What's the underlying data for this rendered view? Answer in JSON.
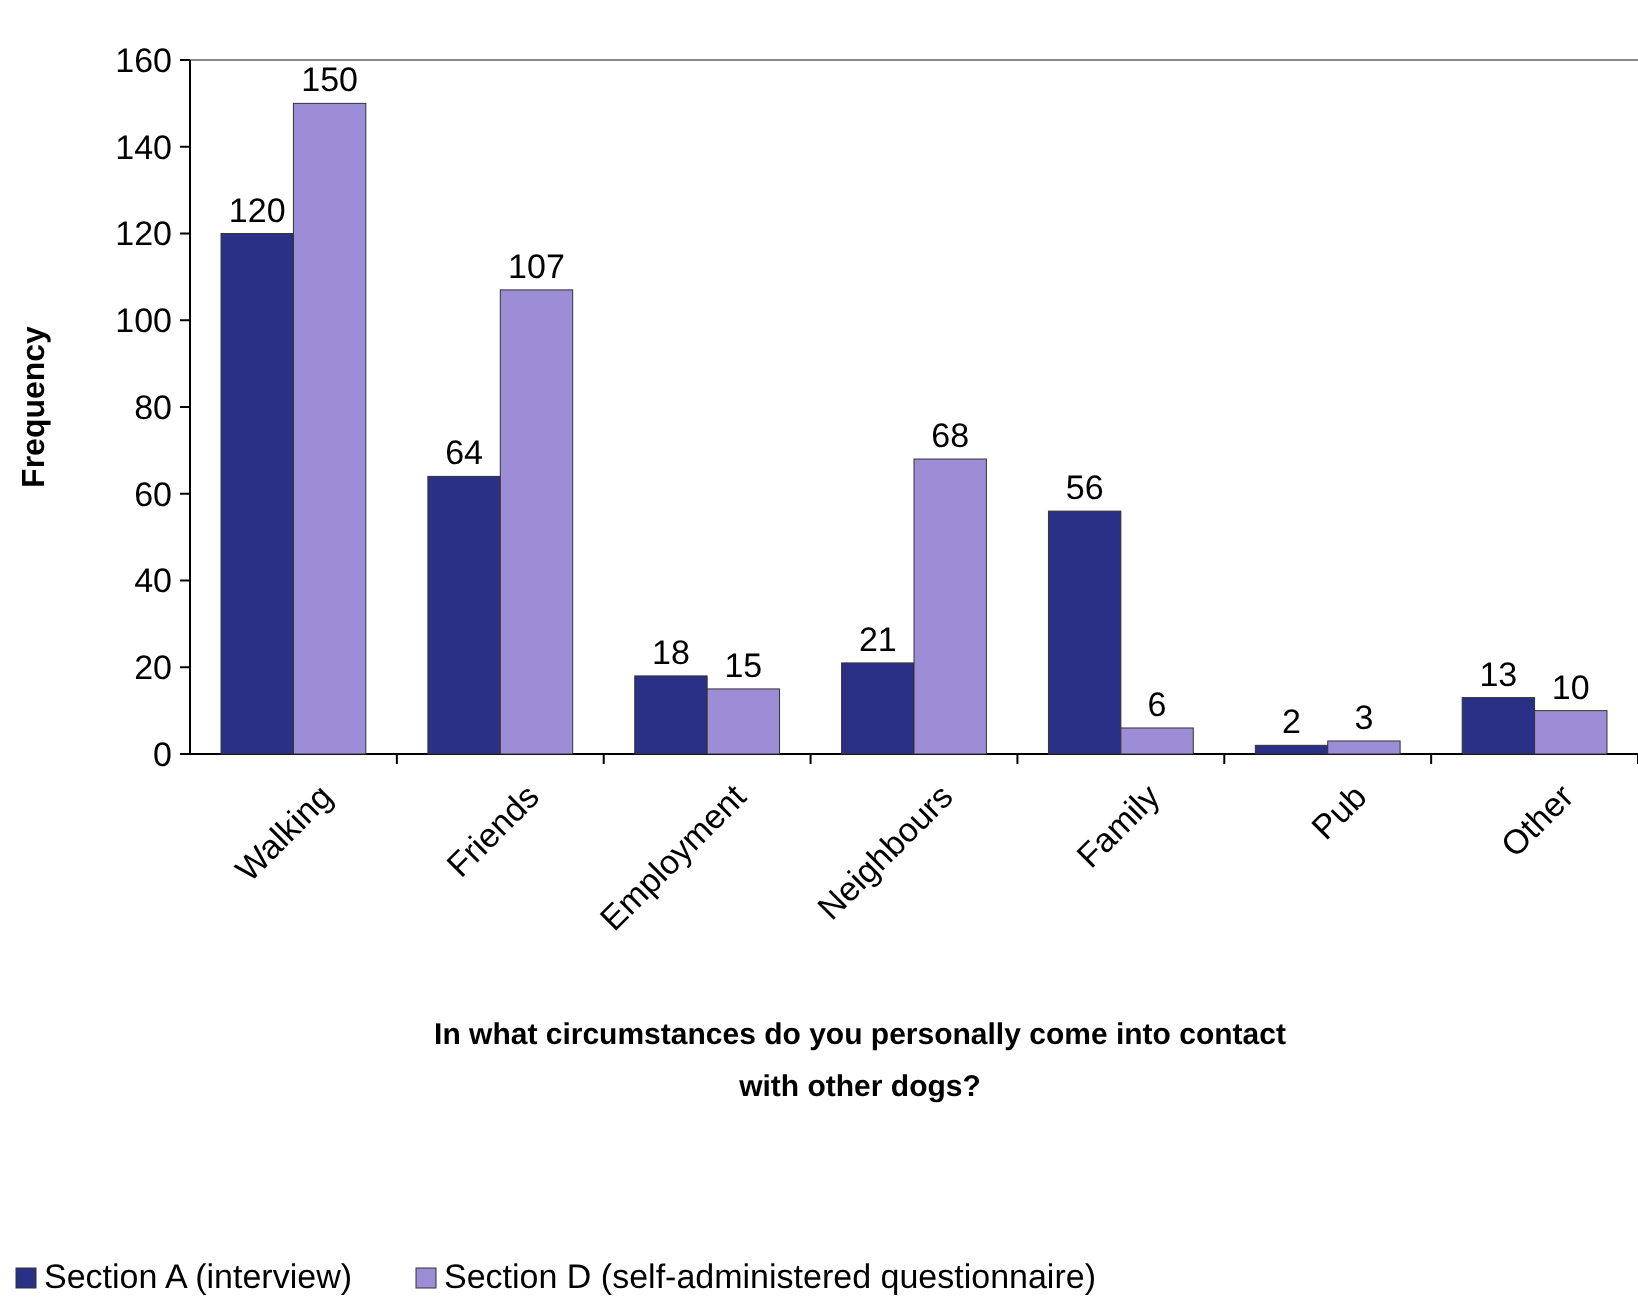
{
  "chart_data": {
    "type": "bar",
    "xlabel": "In what circumstances do you personally come into contact with other dogs?",
    "ylabel": "Frequency",
    "categories": [
      "Walking",
      "Friends",
      "Employment",
      "Neighbours",
      "Family",
      "Pub",
      "Other"
    ],
    "series": [
      {
        "name": "Section A (interview)",
        "color": "#2b3087",
        "values": [
          120,
          64,
          18,
          21,
          56,
          2,
          13
        ]
      },
      {
        "name": "Section D (self-administered questionnaire)",
        "color": "#9d8cd6",
        "values": [
          150,
          107,
          15,
          68,
          6,
          3,
          10
        ]
      }
    ],
    "ylim": [
      0,
      160
    ],
    "yticks": [
      0,
      20,
      40,
      60,
      80,
      100,
      120,
      140,
      160
    ],
    "grid": false,
    "legend": "bottom",
    "data_labels": true
  }
}
